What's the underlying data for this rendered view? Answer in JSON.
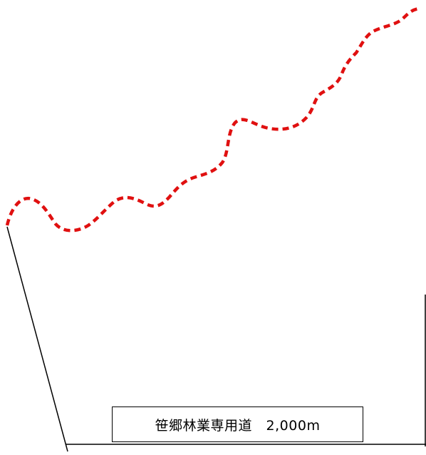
{
  "route": {
    "line_color": "#e01010",
    "line_style": "dashed"
  },
  "label": {
    "text": "笹郷林業専用道　2,000m"
  }
}
